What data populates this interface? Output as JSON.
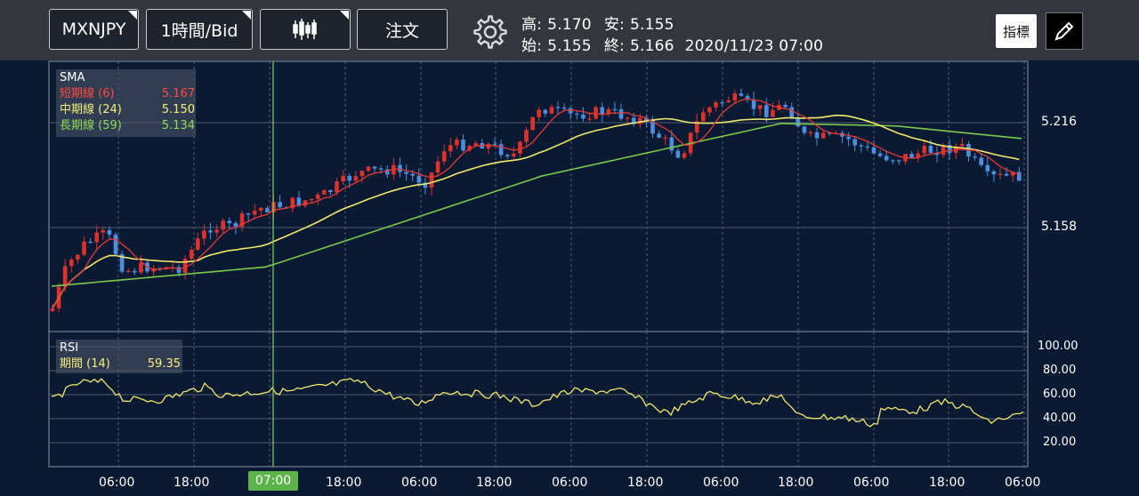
{
  "toolbar": {
    "symbol": "MXNJPY",
    "timeframe": "1時間/Bid",
    "order": "注文",
    "indicator": "指標"
  },
  "ohlc": {
    "high_label": "高:",
    "high": "5.170",
    "low_label": "安:",
    "low": "5.155",
    "open_label": "始:",
    "open": "5.155",
    "close_label": "終:",
    "close": "5.166",
    "datetime": "2020/11/23 07:00"
  },
  "sma": {
    "title": "SMA",
    "short_label": "短期線 (6)",
    "short_value": "5.167",
    "mid_label": "中期線 (24)",
    "mid_value": "5.150",
    "long_label": "長期線 (59)",
    "long_value": "5.134"
  },
  "rsi": {
    "title": "RSI",
    "period_label": "期間 (14)",
    "value": "59.35"
  },
  "price_axis": [
    "5.216",
    "5.158"
  ],
  "rsi_axis": [
    "100.00",
    "80.00",
    "60.00",
    "40.00",
    "20.00"
  ],
  "time_axis": [
    "06:00",
    "18:00",
    "07:00",
    "18:00",
    "06:00",
    "18:00",
    "06:00",
    "18:00",
    "06:00",
    "18:00",
    "06:00",
    "18:00",
    "06:00"
  ],
  "colors": {
    "short": "#e53935",
    "mid": "#f0e86a",
    "long": "#79c94a",
    "bull": "#e0302a",
    "bear": "#4a8fe0",
    "cursor": "#7ed957"
  }
}
